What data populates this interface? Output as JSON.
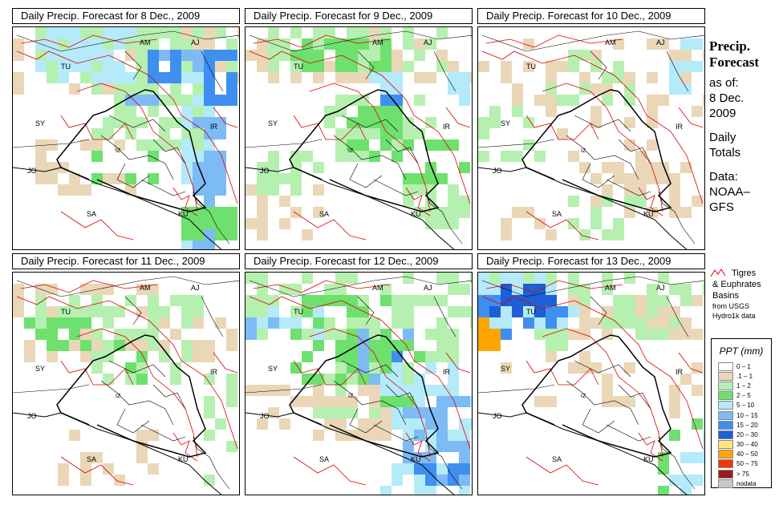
{
  "panels": [
    {
      "title": "Daily Precip. Forecast for  8 Dec., 2009",
      "pattern": "p8"
    },
    {
      "title": "Daily Precip. Forecast for  9 Dec., 2009",
      "pattern": "p9"
    },
    {
      "title": "Daily Precip. Forecast for  10 Dec., 2009",
      "pattern": "p10"
    },
    {
      "title": "Daily Precip. Forecast for  11 Dec., 2009",
      "pattern": "p11"
    },
    {
      "title": "Daily Precip. Forecast for  12 Dec., 2009",
      "pattern": "p12"
    },
    {
      "title": "Daily Precip. Forecast for  13 Dec., 2009",
      "pattern": "p13"
    }
  ],
  "map_labels": [
    "AM",
    "AJ",
    "TU",
    "SY",
    "IR",
    "JO",
    "SA",
    "KU",
    "IZ"
  ],
  "side": {
    "title_line1": "Precip.",
    "title_line2": "Forecast",
    "asof_line1": "as of:",
    "asof_line2": "8 Dec.",
    "asof_line3": "2009",
    "daily_line1": "Daily",
    "daily_line2": "Totals",
    "data_line1": "Data:",
    "data_line2": "NOAA–",
    "data_line3": "GFS"
  },
  "basin_legend": {
    "line1": "Tigres",
    "line2": "& Euphrates",
    "line3": "Basins",
    "line4": "from USGS",
    "line5": "Hydro1k data",
    "line_color": "#dd0000"
  },
  "legend": {
    "title": "PPT (mm)",
    "items": [
      {
        "label": "0 – 1",
        "color": "#ffffff"
      },
      {
        "label": ".1 – 1",
        "color": "#ead7b7"
      },
      {
        "label": "1 – 2",
        "color": "#b5f0b0"
      },
      {
        "label": "2 – 5",
        "color": "#6ee06e"
      },
      {
        "label": "5 – 10",
        "color": "#b4eafa"
      },
      {
        "label": "10 – 15",
        "color": "#7dbbf5"
      },
      {
        "label": "15 – 20",
        "color": "#3f8ff0"
      },
      {
        "label": "20 – 30",
        "color": "#1c5fd6"
      },
      {
        "label": "30 – 40",
        "color": "#ffe77a"
      },
      {
        "label": "40 – 50",
        "color": "#ffa500"
      },
      {
        "label": "50 – 75",
        "color": "#ee3a00"
      },
      {
        "label": "> 75",
        "color": "#9b1c1c"
      },
      {
        "label": "nodata",
        "color": "#c8c8c8"
      }
    ]
  }
}
